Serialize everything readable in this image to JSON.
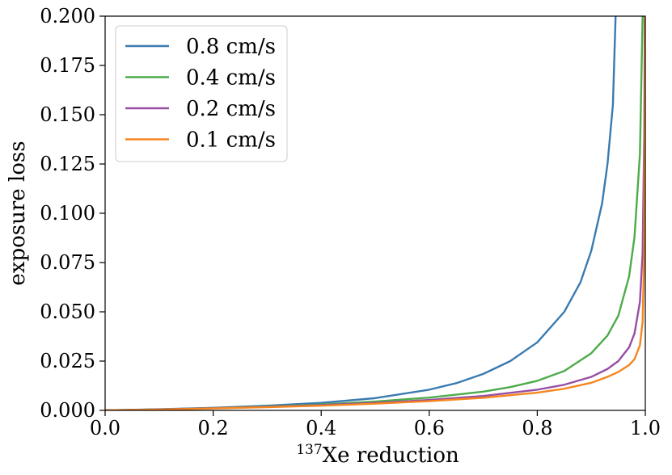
{
  "chart_data": {
    "type": "line",
    "title": "",
    "xlabel_sup": "137",
    "xlabel": "Xe reduction",
    "ylabel": "exposure loss",
    "xlim": [
      0.0,
      1.0
    ],
    "ylim": [
      0.0,
      0.2
    ],
    "x_ticks": [
      "0.0",
      "0.2",
      "0.4",
      "0.6",
      "0.8",
      "1.0"
    ],
    "y_ticks": [
      "0.000",
      "0.025",
      "0.050",
      "0.075",
      "0.100",
      "0.125",
      "0.150",
      "0.175",
      "0.200"
    ],
    "grid": false,
    "legend_position": "top-left",
    "series": [
      {
        "name": "0.8 cm/s",
        "color": "#3a7ab0",
        "x": [
          0,
          0.1,
          0.2,
          0.3,
          0.4,
          0.5,
          0.6,
          0.65,
          0.7,
          0.75,
          0.8,
          0.85,
          0.88,
          0.9,
          0.92,
          0.93,
          0.94,
          0.945
        ],
        "y": [
          0,
          0.0006,
          0.0013,
          0.0024,
          0.0038,
          0.0062,
          0.0105,
          0.0138,
          0.0185,
          0.025,
          0.0345,
          0.05,
          0.065,
          0.081,
          0.105,
          0.125,
          0.155,
          0.2
        ]
      },
      {
        "name": "0.4 cm/s",
        "color": "#4dab4a",
        "x": [
          0,
          0.1,
          0.2,
          0.3,
          0.4,
          0.5,
          0.6,
          0.7,
          0.75,
          0.8,
          0.85,
          0.9,
          0.93,
          0.95,
          0.97,
          0.98,
          0.99,
          0.995
        ],
        "y": [
          0,
          0.0005,
          0.0012,
          0.002,
          0.003,
          0.0045,
          0.0065,
          0.0095,
          0.0118,
          0.015,
          0.02,
          0.029,
          0.038,
          0.048,
          0.068,
          0.088,
          0.13,
          0.2
        ]
      },
      {
        "name": "0.2 cm/s",
        "color": "#974ea4",
        "x": [
          0,
          0.1,
          0.2,
          0.3,
          0.4,
          0.5,
          0.6,
          0.7,
          0.8,
          0.85,
          0.9,
          0.93,
          0.95,
          0.97,
          0.98,
          0.99,
          0.995,
          0.998,
          0.999
        ],
        "y": [
          0,
          0.0005,
          0.0011,
          0.0018,
          0.0027,
          0.0038,
          0.0053,
          0.0073,
          0.0105,
          0.013,
          0.017,
          0.021,
          0.025,
          0.032,
          0.039,
          0.055,
          0.08,
          0.14,
          0.2
        ]
      },
      {
        "name": "0.1 cm/s",
        "color": "#f5861f",
        "x": [
          0,
          0.1,
          0.2,
          0.3,
          0.4,
          0.5,
          0.6,
          0.7,
          0.8,
          0.85,
          0.9,
          0.93,
          0.95,
          0.97,
          0.98,
          0.99,
          0.995,
          0.998,
          0.9995
        ],
        "y": [
          0,
          0.0004,
          0.001,
          0.0016,
          0.0024,
          0.0034,
          0.0047,
          0.0064,
          0.009,
          0.011,
          0.014,
          0.017,
          0.0195,
          0.023,
          0.026,
          0.033,
          0.045,
          0.08,
          0.2
        ]
      }
    ]
  }
}
